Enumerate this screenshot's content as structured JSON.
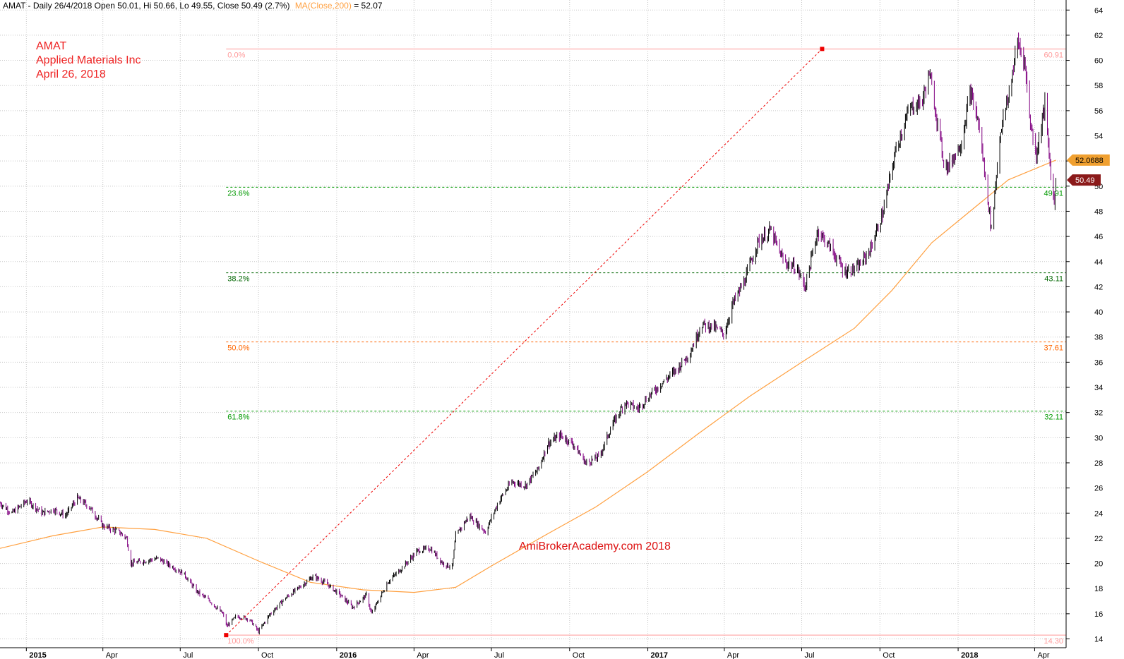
{
  "header": {
    "info": "AMAT - Daily 26/4/2018 Open 50.01, Hi 50.66, Lo 49.55, Close 50.49 (2.7%)",
    "ma_label": "MA(Close,200)",
    "ma_value": " = 52.07"
  },
  "title_block": {
    "symbol": "AMAT",
    "company": "Applied Materials Inc",
    "date": "April 26, 2018"
  },
  "watermark": "AmiBrokerAcademy.com  2018",
  "colors": {
    "price_up": "#000000",
    "price_down": "#800080",
    "ma": "#ffa040",
    "fib_0": "#ff9999",
    "fib_236": "#009900",
    "fib_382": "#006600",
    "fib_50": "#ff6600",
    "fib_618": "#009900",
    "fib_100": "#ff9999",
    "trend_line": "#ee0000",
    "ma_tag_bg": "#f0a030",
    "close_tag_bg": "#8b1a1a",
    "grid": "#c8c8c8",
    "watermark": "#dd1111"
  },
  "chart_data": {
    "type": "line",
    "title": "AMAT - Daily 26/4/2018",
    "ylim": [
      13.3,
      64.8
    ],
    "yticks": [
      14,
      16,
      18,
      20,
      22,
      24,
      26,
      28,
      30,
      32,
      34,
      36,
      38,
      40,
      42,
      44,
      46,
      48,
      50,
      52,
      54,
      56,
      58,
      60,
      62,
      64
    ],
    "x_range": [
      "2014-12-01",
      "2018-05-08"
    ],
    "x_ticks": [
      {
        "date": "2015-01-01",
        "label": "2015",
        "bold": true
      },
      {
        "date": "2015-04-01",
        "label": "Apr",
        "bold": false
      },
      {
        "date": "2015-07-01",
        "label": "Jul",
        "bold": false
      },
      {
        "date": "2015-10-01",
        "label": "Oct",
        "bold": false
      },
      {
        "date": "2016-01-01",
        "label": "2016",
        "bold": true
      },
      {
        "date": "2016-04-01",
        "label": "Apr",
        "bold": false
      },
      {
        "date": "2016-07-01",
        "label": "Jul",
        "bold": false
      },
      {
        "date": "2016-10-01",
        "label": "Oct",
        "bold": false
      },
      {
        "date": "2017-01-01",
        "label": "2017",
        "bold": true
      },
      {
        "date": "2017-04-01",
        "label": "Apr",
        "bold": false
      },
      {
        "date": "2017-07-01",
        "label": "Jul",
        "bold": false
      },
      {
        "date": "2017-10-01",
        "label": "Oct",
        "bold": false
      },
      {
        "date": "2018-01-01",
        "label": "2018",
        "bold": true
      },
      {
        "date": "2018-04-01",
        "label": "Apr",
        "bold": false
      }
    ],
    "series": [
      {
        "name": "AMAT",
        "style": "ohlc",
        "points": [
          [
            "2014-12-01",
            24.8
          ],
          [
            "2014-12-15",
            24.0
          ],
          [
            "2015-01-02",
            25.0
          ],
          [
            "2015-01-20",
            24.0
          ],
          [
            "2015-02-02",
            24.3
          ],
          [
            "2015-02-16",
            23.8
          ],
          [
            "2015-03-02",
            25.2
          ],
          [
            "2015-03-16",
            24.5
          ],
          [
            "2015-04-01",
            23.0
          ],
          [
            "2015-04-20",
            22.5
          ],
          [
            "2015-04-29",
            22.0
          ],
          [
            "2015-05-04",
            20.0
          ],
          [
            "2015-05-20",
            20.2
          ],
          [
            "2015-06-05",
            20.4
          ],
          [
            "2015-06-20",
            19.8
          ],
          [
            "2015-07-05",
            19.2
          ],
          [
            "2015-07-20",
            17.8
          ],
          [
            "2015-08-05",
            17.0
          ],
          [
            "2015-08-20",
            16.0
          ],
          [
            "2015-08-25",
            15.0
          ],
          [
            "2015-09-05",
            15.8
          ],
          [
            "2015-09-20",
            15.6
          ],
          [
            "2015-10-01",
            14.6
          ],
          [
            "2015-10-15",
            16.0
          ],
          [
            "2015-11-01",
            17.2
          ],
          [
            "2015-11-20",
            18.2
          ],
          [
            "2015-12-05",
            19.0
          ],
          [
            "2015-12-20",
            18.4
          ],
          [
            "2016-01-05",
            17.5
          ],
          [
            "2016-01-20",
            16.5
          ],
          [
            "2016-02-05",
            17.5
          ],
          [
            "2016-02-11",
            16.0
          ],
          [
            "2016-03-01",
            18.5
          ],
          [
            "2016-03-20",
            19.8
          ],
          [
            "2016-04-05",
            21.0
          ],
          [
            "2016-04-20",
            21.2
          ],
          [
            "2016-05-05",
            20.0
          ],
          [
            "2016-05-16",
            19.7
          ],
          [
            "2016-05-20",
            22.2
          ],
          [
            "2016-06-05",
            23.8
          ],
          [
            "2016-06-24",
            22.5
          ],
          [
            "2016-07-10",
            25.0
          ],
          [
            "2016-07-25",
            26.5
          ],
          [
            "2016-08-10",
            26.2
          ],
          [
            "2016-08-25",
            27.5
          ],
          [
            "2016-09-05",
            29.5
          ],
          [
            "2016-09-20",
            30.2
          ],
          [
            "2016-10-05",
            29.5
          ],
          [
            "2016-10-20",
            28.0
          ],
          [
            "2016-11-05",
            28.5
          ],
          [
            "2016-11-20",
            31.0
          ],
          [
            "2016-12-05",
            32.8
          ],
          [
            "2016-12-20",
            32.3
          ],
          [
            "2017-01-05",
            33.5
          ],
          [
            "2017-01-20",
            34.5
          ],
          [
            "2017-02-05",
            35.5
          ],
          [
            "2017-02-20",
            36.8
          ],
          [
            "2017-03-05",
            39.0
          ],
          [
            "2017-03-20",
            38.8
          ],
          [
            "2017-04-01",
            38.2
          ],
          [
            "2017-04-10",
            40.5
          ],
          [
            "2017-04-25",
            42.5
          ],
          [
            "2017-05-10",
            45.5
          ],
          [
            "2017-05-25",
            46.5
          ],
          [
            "2017-06-10",
            44.0
          ],
          [
            "2017-06-25",
            43.5
          ],
          [
            "2017-07-05",
            42.0
          ],
          [
            "2017-07-20",
            46.5
          ],
          [
            "2017-08-05",
            45.0
          ],
          [
            "2017-08-20",
            43.2
          ],
          [
            "2017-09-05",
            43.5
          ],
          [
            "2017-09-20",
            45.0
          ],
          [
            "2017-10-05",
            48.0
          ],
          [
            "2017-10-20",
            53.0
          ],
          [
            "2017-11-05",
            56.2
          ],
          [
            "2017-11-20",
            56.8
          ],
          [
            "2017-11-28",
            59.0
          ],
          [
            "2017-12-05",
            56.2
          ],
          [
            "2017-12-15",
            52.0
          ],
          [
            "2017-12-20",
            51.5
          ],
          [
            "2018-01-05",
            53.5
          ],
          [
            "2018-01-15",
            57.5
          ],
          [
            "2018-01-25",
            55.0
          ],
          [
            "2018-02-05",
            49.0
          ],
          [
            "2018-02-09",
            46.5
          ],
          [
            "2018-02-20",
            54.5
          ],
          [
            "2018-03-01",
            57.0
          ],
          [
            "2018-03-12",
            61.5
          ],
          [
            "2018-03-20",
            60.0
          ],
          [
            "2018-03-27",
            55.0
          ],
          [
            "2018-04-03",
            52.5
          ],
          [
            "2018-04-13",
            56.5
          ],
          [
            "2018-04-20",
            51.0
          ],
          [
            "2018-04-24",
            48.5
          ],
          [
            "2018-04-26",
            50.49
          ]
        ]
      },
      {
        "name": "MA(Close,200)",
        "style": "line",
        "points": [
          [
            "2014-12-01",
            21.2
          ],
          [
            "2015-02-01",
            22.2
          ],
          [
            "2015-04-01",
            22.9
          ],
          [
            "2015-06-01",
            22.7
          ],
          [
            "2015-08-01",
            22.0
          ],
          [
            "2015-10-01",
            20.2
          ],
          [
            "2015-12-01",
            18.5
          ],
          [
            "2016-02-01",
            17.9
          ],
          [
            "2016-04-01",
            17.7
          ],
          [
            "2016-05-20",
            18.1
          ],
          [
            "2016-07-01",
            19.8
          ],
          [
            "2016-09-01",
            22.2
          ],
          [
            "2016-11-01",
            24.5
          ],
          [
            "2017-01-01",
            27.3
          ],
          [
            "2017-03-01",
            30.3
          ],
          [
            "2017-05-01",
            33.3
          ],
          [
            "2017-07-01",
            36.0
          ],
          [
            "2017-09-01",
            38.7
          ],
          [
            "2017-10-15",
            41.7
          ],
          [
            "2017-12-01",
            45.5
          ],
          [
            "2018-01-15",
            48.0
          ],
          [
            "2018-03-01",
            50.5
          ],
          [
            "2018-04-26",
            52.07
          ]
        ]
      }
    ],
    "fibonacci": [
      {
        "pct": "0.0%",
        "value": 60.91,
        "value_label": "60.91",
        "color_key": "fib_0",
        "style": "solid"
      },
      {
        "pct": "23.6%",
        "value": 49.91,
        "value_label": "49.91",
        "color_key": "fib_236",
        "style": "dashed"
      },
      {
        "pct": "38.2%",
        "value": 43.11,
        "value_label": "43.11",
        "color_key": "fib_382",
        "style": "dashed"
      },
      {
        "pct": "50.0%",
        "value": 37.61,
        "value_label": "37.61",
        "color_key": "fib_50",
        "style": "dashed"
      },
      {
        "pct": "61.8%",
        "value": 32.11,
        "value_label": "32.11",
        "color_key": "fib_618",
        "style": "dashed"
      },
      {
        "pct": "100.0%",
        "value": 14.3,
        "value_label": "14.30",
        "color_key": "fib_100",
        "style": "solid"
      }
    ],
    "trend_line": {
      "start": [
        "2015-08-24",
        14.3
      ],
      "end": [
        "2017-07-25",
        60.91
      ]
    },
    "fib_start_date": "2015-08-24",
    "price_tags": [
      {
        "value": 52.07,
        "label": "52.0688",
        "bg_key": "ma_tag_bg",
        "fg": "#000000"
      },
      {
        "value": 50.49,
        "label": "50.49",
        "bg_key": "close_tag_bg",
        "fg": "#ffffff"
      }
    ]
  }
}
